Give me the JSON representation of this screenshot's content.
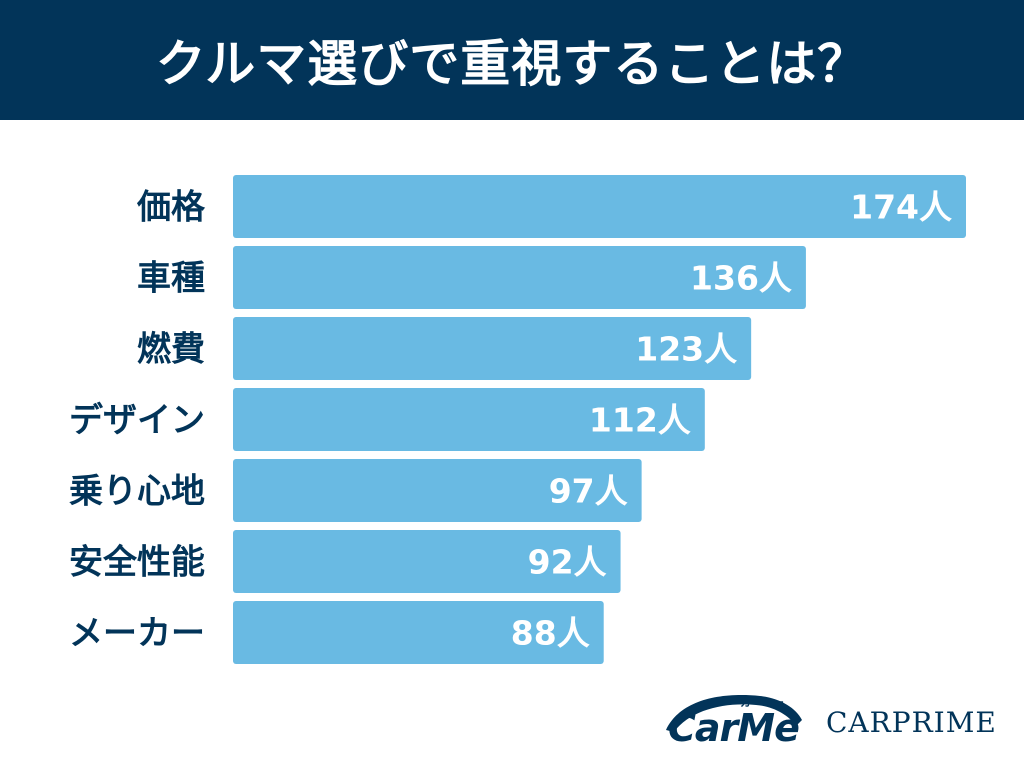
{
  "header": {
    "title": "クルマ選びで重視することは？"
  },
  "colors": {
    "header_bg": "#023459",
    "bar": "#69BAE3",
    "label_text": "#023459",
    "value_text": "#ffffff"
  },
  "chart_data": {
    "type": "bar",
    "orientation": "horizontal",
    "categories": [
      "価格",
      "車種",
      "燃費",
      "デザイン",
      "乗り心地",
      "安全性能",
      "メーカー"
    ],
    "values": [
      174,
      136,
      123,
      112,
      97,
      92,
      88
    ],
    "value_labels": [
      "174人",
      "136人",
      "123人",
      "112人",
      "97人",
      "92人",
      "88人"
    ],
    "unit": "人",
    "xlim": [
      0,
      174
    ],
    "grid": false,
    "legend": "none"
  },
  "logos": {
    "carme": {
      "text": "CarMe",
      "kana": "カーミー"
    },
    "carprime": {
      "text": "CARPRIME"
    }
  }
}
